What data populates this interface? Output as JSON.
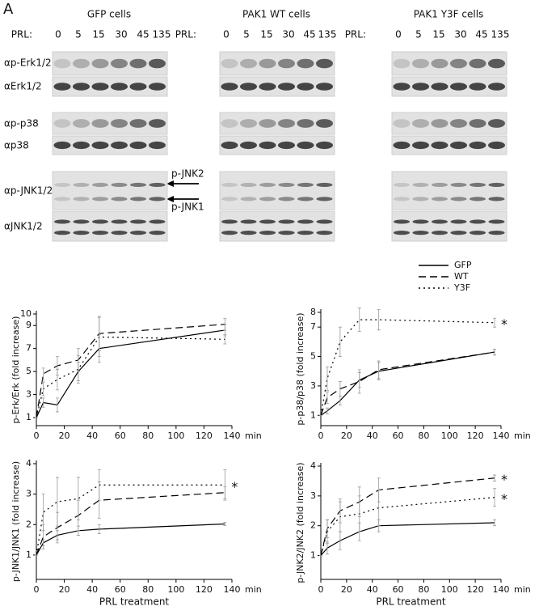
{
  "panel_label": "A",
  "blots": {
    "panels": [
      "GFP cells",
      "PAK1 WT cells",
      "PAK1 Y3F cells"
    ],
    "prl_label": "PRL:",
    "prl_times": [
      "0",
      "5",
      "15",
      "30",
      "45",
      "135"
    ],
    "rows": [
      "αp-Erk1/2",
      "αErk1/2",
      "αp-p38",
      "αp38",
      "αp-JNK1/2",
      "αJNK1/2"
    ],
    "arrows": [
      "p-JNK2",
      "p-JNK1"
    ]
  },
  "chart_data": [
    {
      "type": "line",
      "ylabel": "p-Erk/Erk (fold increase)",
      "x_unit": "min",
      "x": [
        0,
        5,
        15,
        30,
        45,
        135
      ],
      "xlim": [
        0,
        140
      ],
      "xticks": [
        0,
        20,
        40,
        60,
        80,
        100,
        120,
        140
      ],
      "ylim": [
        0.3,
        10
      ],
      "yticks": [
        1,
        3,
        5,
        7,
        9,
        10
      ],
      "series": [
        {
          "name": "GFP",
          "color": "#000000",
          "style": "solid",
          "values": [
            1,
            2.3,
            2.1,
            5,
            7,
            8.6
          ],
          "errors": [
            0,
            0.4,
            0.6,
            0.8,
            1.2,
            0.5
          ]
        },
        {
          "name": "WT",
          "color": "#000000",
          "style": "dashed",
          "values": [
            1,
            4.8,
            5.5,
            6,
            8.3,
            9.1
          ],
          "errors": [
            0,
            0.5,
            0.8,
            1,
            1.5,
            0.5
          ]
        },
        {
          "name": "Y3F",
          "color": "#000000",
          "style": "dotted",
          "values": [
            1,
            3.5,
            4.3,
            5.2,
            8,
            7.8
          ],
          "errors": [
            0,
            0.6,
            0.9,
            1.2,
            1.7,
            0.4
          ]
        }
      ],
      "annotations": []
    },
    {
      "type": "line",
      "ylabel": "p-p38/p38 (fold increase)",
      "x_unit": "min",
      "x": [
        0,
        5,
        15,
        30,
        45,
        135
      ],
      "xlim": [
        0,
        140
      ],
      "xticks": [
        0,
        20,
        40,
        60,
        80,
        100,
        120,
        140
      ],
      "ylim": [
        0.3,
        8
      ],
      "yticks": [
        1,
        3,
        5,
        7,
        8
      ],
      "series": [
        {
          "name": "GFP",
          "color": "#000000",
          "style": "solid",
          "values": [
            1,
            1.3,
            2,
            3.4,
            4,
            5.3
          ],
          "errors": [
            0,
            0.2,
            0.3,
            0.5,
            0.6,
            0.2
          ]
        },
        {
          "name": "WT",
          "color": "#000000",
          "style": "dashed",
          "values": [
            1,
            2.2,
            2.8,
            3.3,
            4.1,
            5.3
          ],
          "errors": [
            0,
            0.4,
            0.5,
            0.8,
            0.6,
            0.2
          ]
        },
        {
          "name": "Y3F",
          "color": "#000000",
          "style": "dotted",
          "values": [
            1,
            3.5,
            6,
            7.5,
            7.5,
            7.3
          ],
          "errors": [
            0,
            0.8,
            1,
            0.8,
            0.7,
            0.3
          ]
        }
      ],
      "annotations": [
        "*"
      ]
    },
    {
      "type": "line",
      "ylabel": "p-JNK1/JNK1 (fold increase)",
      "xlabel": "PRL treatment",
      "x_unit": "min",
      "x": [
        0,
        5,
        15,
        30,
        45,
        135
      ],
      "xlim": [
        0,
        140
      ],
      "xticks": [
        0,
        20,
        40,
        60,
        80,
        100,
        120,
        140
      ],
      "ylim": [
        0.2,
        4
      ],
      "yticks": [
        1,
        2,
        3,
        4
      ],
      "series": [
        {
          "name": "GFP",
          "color": "#000000",
          "style": "solid",
          "values": [
            1,
            1.4,
            1.65,
            1.8,
            1.85,
            2.02
          ],
          "errors": [
            0,
            0.1,
            0.15,
            0.15,
            0.15,
            0.05
          ]
        },
        {
          "name": "WT",
          "color": "#000000",
          "style": "dashed",
          "values": [
            1,
            1.6,
            1.9,
            2.3,
            2.8,
            3.05
          ],
          "errors": [
            0,
            0.4,
            0.5,
            0.5,
            0.6,
            0.2
          ]
        },
        {
          "name": "Y3F",
          "color": "#000000",
          "style": "dotted",
          "values": [
            1,
            2.4,
            2.75,
            2.85,
            3.3,
            3.3
          ],
          "errors": [
            0,
            0.6,
            0.8,
            0.7,
            0.5,
            0.5
          ]
        }
      ],
      "annotations": [
        "*"
      ]
    },
    {
      "type": "line",
      "ylabel": "p-JNK2/JNK2 (fold increase)",
      "xlabel": "PRL treatment",
      "x_unit": "min",
      "x": [
        0,
        5,
        15,
        30,
        45,
        135
      ],
      "xlim": [
        0,
        140
      ],
      "xticks": [
        0,
        20,
        40,
        60,
        80,
        100,
        120,
        140
      ],
      "ylim": [
        0.2,
        4
      ],
      "yticks": [
        1,
        2,
        3,
        4
      ],
      "series": [
        {
          "name": "GFP",
          "color": "#000000",
          "style": "solid",
          "values": [
            1,
            1.25,
            1.5,
            1.8,
            2,
            2.1
          ],
          "errors": [
            0,
            0.2,
            0.3,
            0.3,
            0.2,
            0.1
          ]
        },
        {
          "name": "WT",
          "color": "#000000",
          "style": "dashed",
          "values": [
            1,
            1.9,
            2.5,
            2.8,
            3.2,
            3.6
          ],
          "errors": [
            0,
            0.3,
            0.4,
            0.5,
            0.4,
            0.1
          ]
        },
        {
          "name": "Y3F",
          "color": "#000000",
          "style": "dotted",
          "values": [
            1,
            1.8,
            2.3,
            2.4,
            2.6,
            2.95
          ],
          "errors": [
            0,
            0.4,
            0.5,
            0.6,
            0.6,
            0.3
          ]
        }
      ],
      "annotations": [
        "*",
        "*"
      ]
    }
  ]
}
